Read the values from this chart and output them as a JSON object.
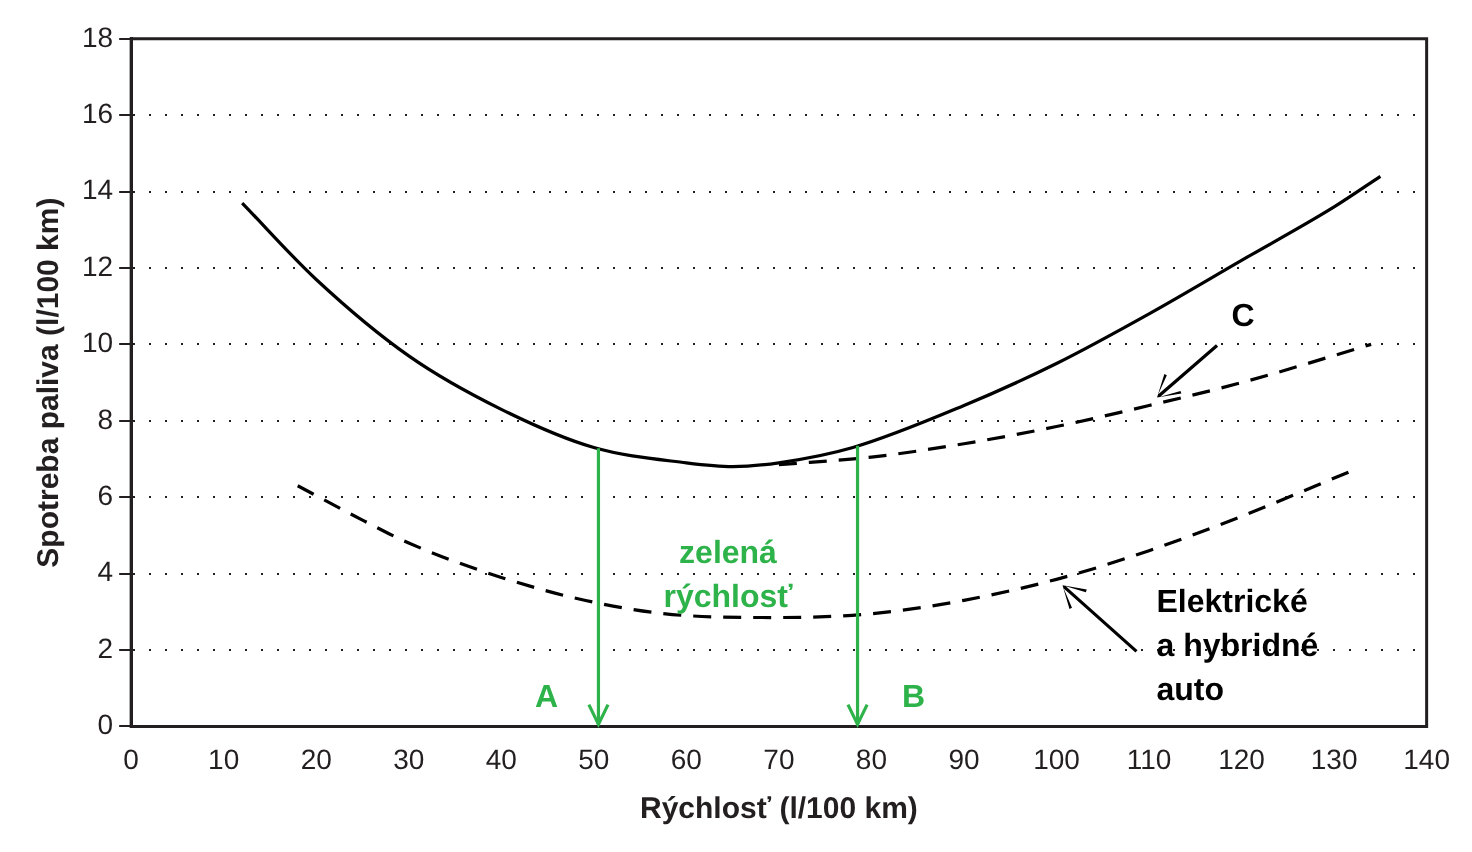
{
  "chart_data": {
    "type": "line",
    "xlabel": "Rýchlosť (l/100 km)",
    "ylabel": "Spotreba paliva (l/100 km)",
    "xlim": [
      0,
      140
    ],
    "xticks": [
      0,
      10,
      20,
      30,
      40,
      50,
      60,
      70,
      80,
      90,
      100,
      110,
      120,
      130,
      140
    ],
    "ylim": [
      0,
      18
    ],
    "yticks": [
      0,
      2,
      4,
      6,
      8,
      10,
      12,
      14,
      16,
      18
    ],
    "grid": "y",
    "marker": "none",
    "series": [
      {
        "color": "#000000",
        "line_style": "solid",
        "x": [
          12,
          20,
          30,
          40,
          50,
          60,
          65,
          70,
          78,
          90,
          100,
          110,
          120,
          130,
          135
        ],
        "values": [
          13.7,
          11.7,
          9.7,
          8.3,
          7.3,
          6.9,
          6.8,
          6.9,
          7.3,
          8.4,
          9.5,
          10.8,
          12.2,
          13.6,
          14.4
        ]
      },
      {
        "name": "C",
        "color": "#000000",
        "line_style": "dashed",
        "x": [
          70,
          80,
          90,
          100,
          110,
          120,
          134
        ],
        "values": [
          6.85,
          7.05,
          7.4,
          7.85,
          8.4,
          9.0,
          10.0
        ]
      },
      {
        "name": "Elektrické a hybridné auto",
        "color": "#000000",
        "line_style": "dashed",
        "x": [
          18,
          25,
          30,
          40,
          50,
          60,
          70,
          80,
          90,
          100,
          110,
          120,
          132
        ],
        "values": [
          6.3,
          5.4,
          4.8,
          3.9,
          3.25,
          2.9,
          2.85,
          2.95,
          3.3,
          3.85,
          4.6,
          5.5,
          6.7
        ]
      }
    ],
    "ref_lines": [
      {
        "axis": "x",
        "value": 50.5,
        "color": "#2db34a"
      },
      {
        "axis": "x",
        "value": 78.5,
        "color": "#2db34a"
      }
    ],
    "annotations": [
      {
        "text": "A",
        "x": 50.5,
        "y": 0
      },
      {
        "text": "B",
        "x": 78.5,
        "y": 0
      },
      "zelená rýchlosť"
    ]
  }
}
